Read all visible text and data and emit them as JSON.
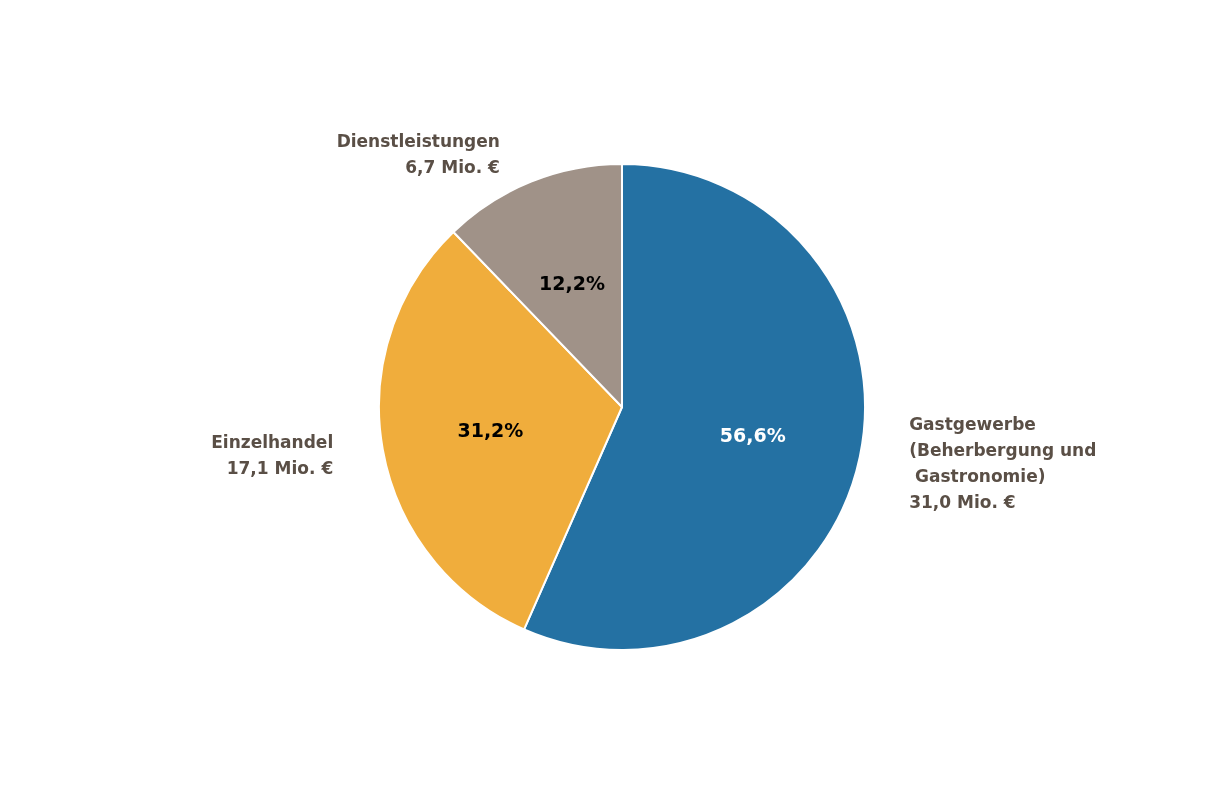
{
  "chart_data": {
    "type": "pie",
    "categories": [
      "Gastgewerbe (Beherbergung und Gastronomie)",
      "Einzelhandel",
      "Dienstleistungen"
    ],
    "values": [
      56.6,
      31.2,
      12.2
    ],
    "colors": [
      "#2471a3",
      "#f0ad3c",
      "#a09288"
    ],
    "value_labels": [
      "56,6%",
      "31,2%",
      "12,2%"
    ],
    "annotations": [
      "31,0 Mio. €",
      "17,1 Mio. €",
      "6,7 Mio. €"
    ],
    "legend": false
  }
}
